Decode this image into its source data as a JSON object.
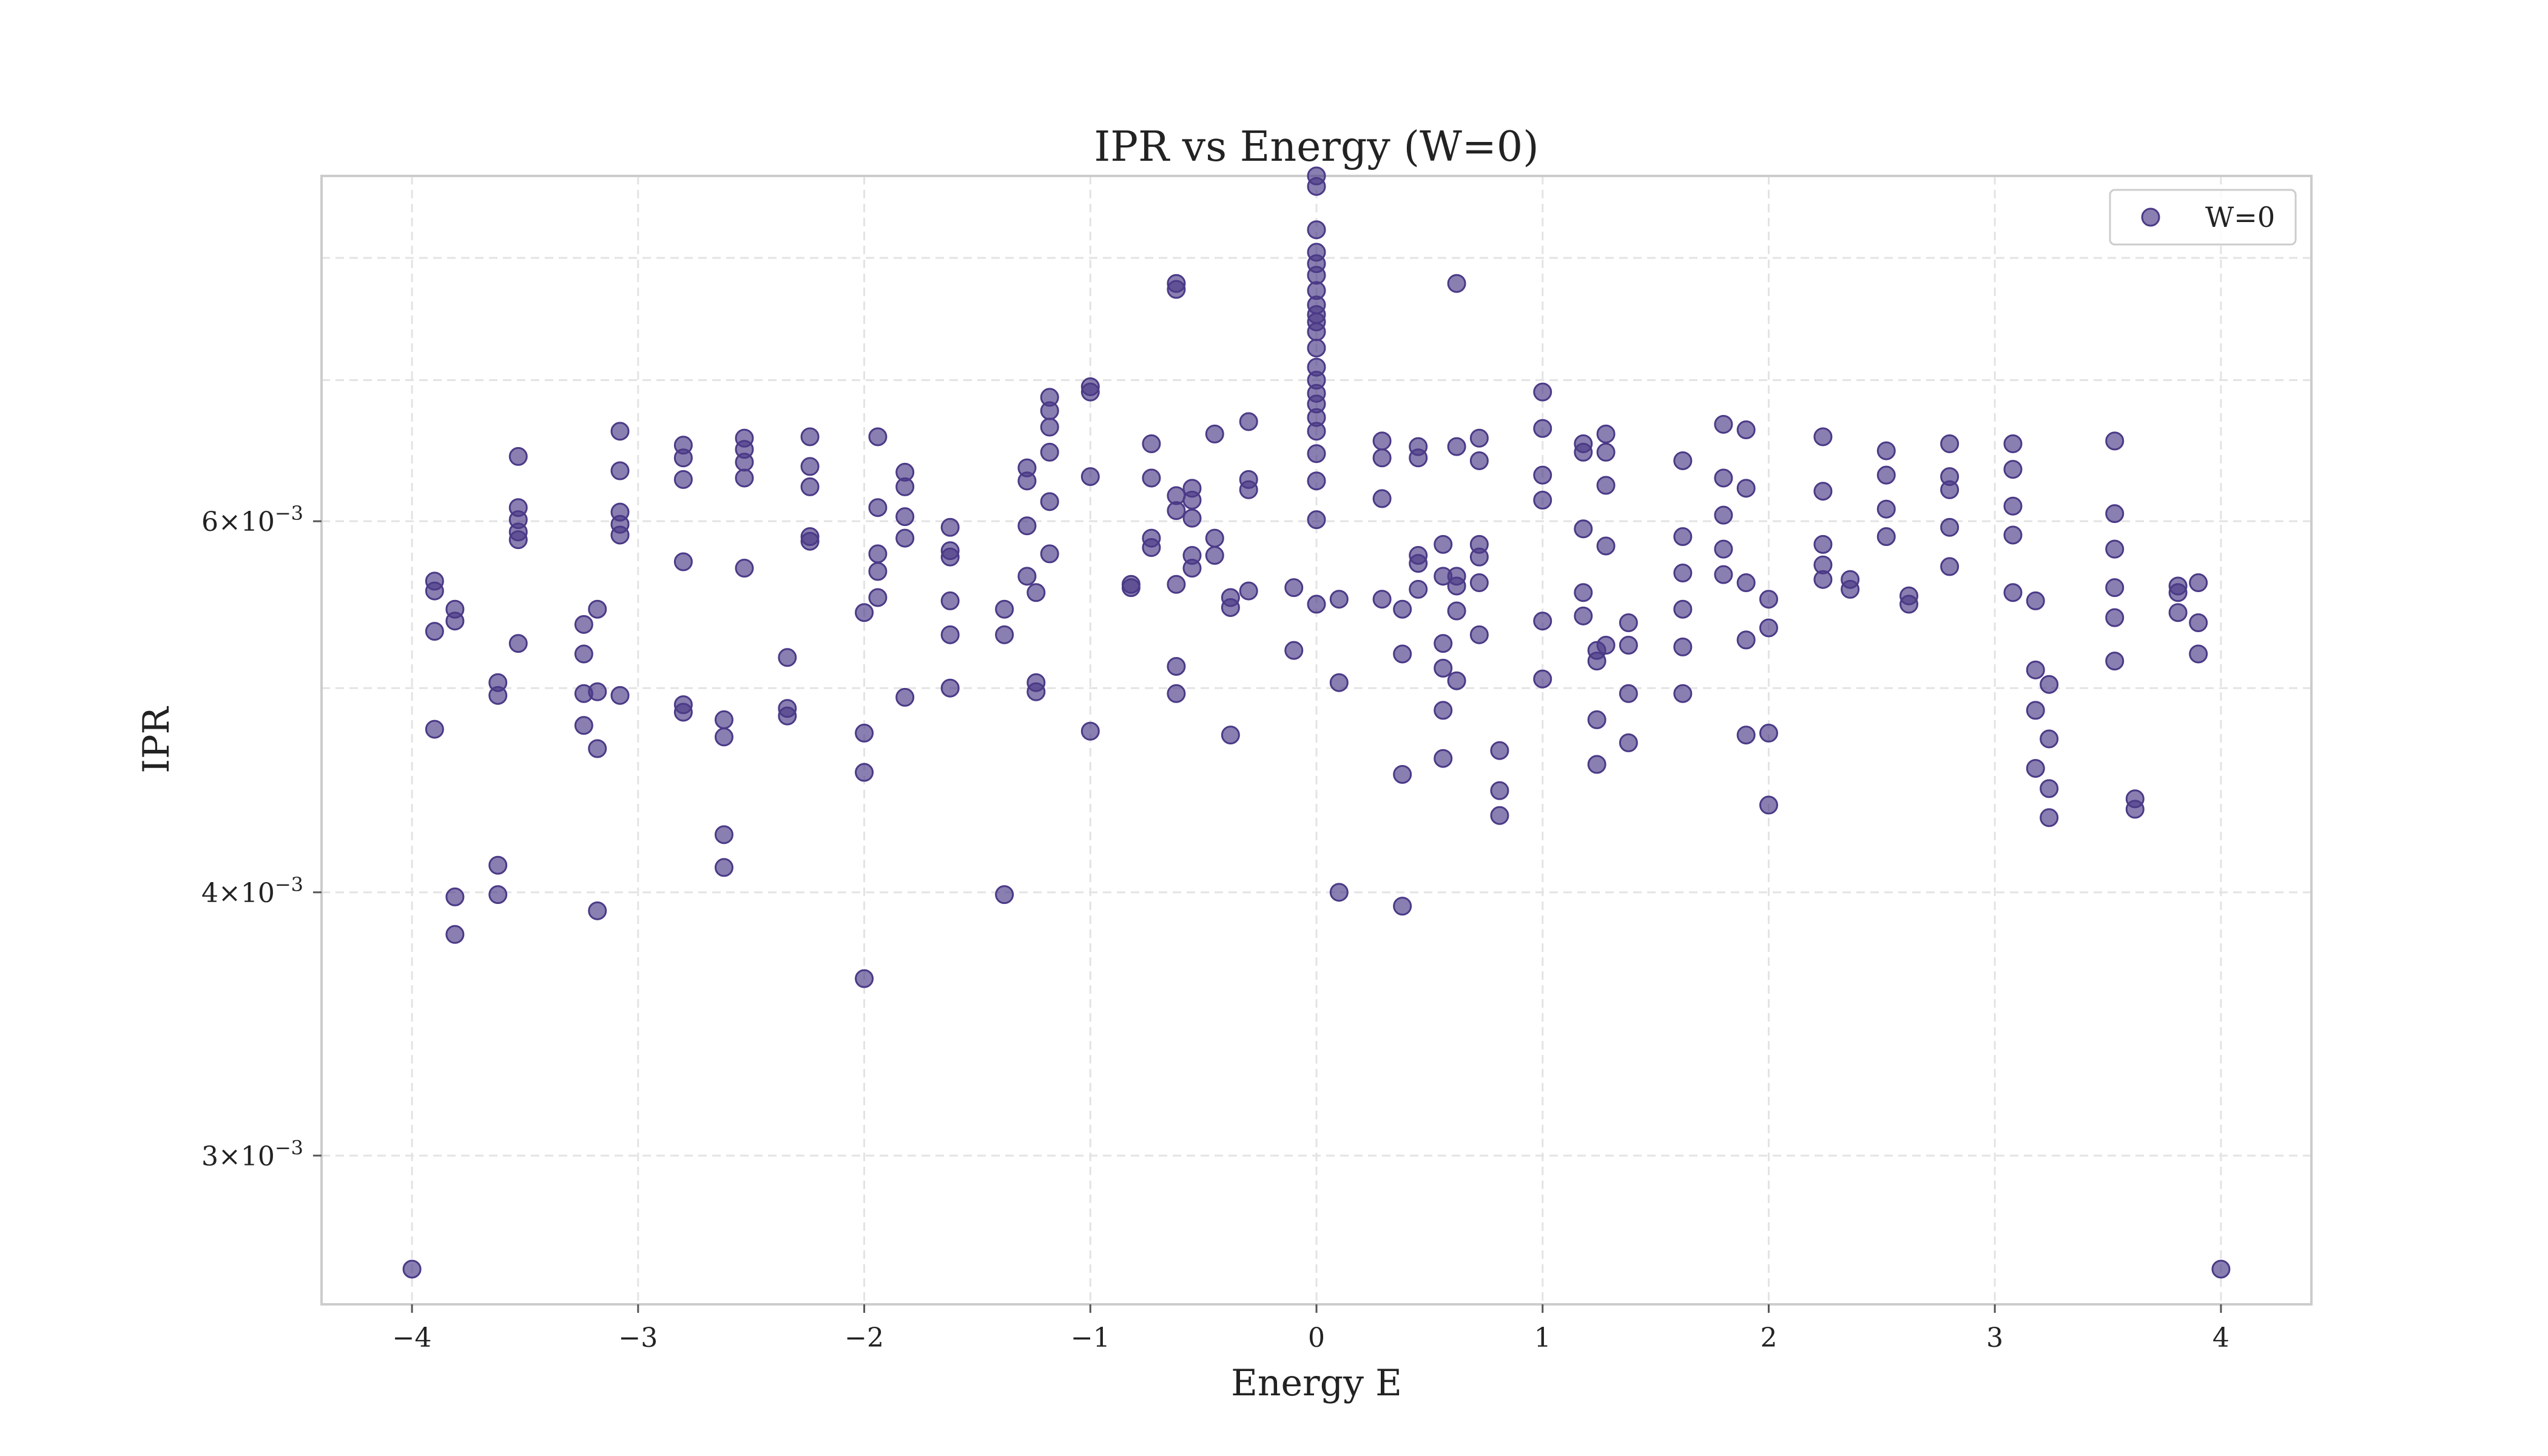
{
  "chart_data": {
    "type": "scatter",
    "title": "IPR vs Energy (W=0)",
    "xlabel": "Energy E",
    "ylabel": "IPR",
    "xlim": [
      -4.4,
      4.4
    ],
    "ylim": [
      0.00255,
      0.00875
    ],
    "y_scale": "log",
    "grid": true,
    "legend_position": "top-right",
    "x_ticks": [
      {
        "value": -4,
        "label": "−4"
      },
      {
        "value": -3,
        "label": "−3"
      },
      {
        "value": -2,
        "label": "−2"
      },
      {
        "value": -1,
        "label": "−1"
      },
      {
        "value": 0,
        "label": "0"
      },
      {
        "value": 1,
        "label": "1"
      },
      {
        "value": 2,
        "label": "2"
      },
      {
        "value": 3,
        "label": "3"
      },
      {
        "value": 4,
        "label": "4"
      }
    ],
    "y_ticks": [
      {
        "value": 0.003,
        "mantissa": "3",
        "base": "×10",
        "exp": "−3"
      },
      {
        "value": 0.004,
        "mantissa": "4",
        "base": "×10",
        "exp": "−3"
      },
      {
        "value": 0.006,
        "mantissa": "6",
        "base": "×10",
        "exp": "−3"
      }
    ],
    "y_minor_gridlines": [
      0.005,
      0.007,
      0.008
    ],
    "series": [
      {
        "name": "W=0",
        "color": "#4b3a87",
        "x": [
          -4.0,
          4.0,
          -3.9,
          -3.9,
          -3.9,
          -3.9,
          -3.81,
          -3.81,
          -3.81,
          -3.81,
          -3.62,
          -3.62,
          -3.62,
          -3.62,
          -3.53,
          -3.53,
          -3.53,
          -3.53,
          -3.53,
          -3.53,
          -3.24,
          -3.24,
          -3.24,
          -3.24,
          -3.18,
          -3.18,
          -3.18,
          -3.18,
          -3.08,
          -3.08,
          -3.08,
          -3.08,
          -3.08,
          -3.08,
          -2.8,
          -2.8,
          -2.8,
          -2.8,
          -2.8,
          -2.8,
          -2.62,
          -2.62,
          -2.62,
          -2.62,
          -2.53,
          -2.53,
          -2.53,
          -2.53,
          -2.53,
          -2.34,
          -2.34,
          -2.34,
          -2.24,
          -2.24,
          -2.24,
          -2.24,
          -2.24,
          -2.0,
          -2.0,
          -2.0,
          -2.0,
          -1.94,
          -1.94,
          -1.94,
          -1.94,
          -1.94,
          -1.82,
          -1.82,
          -1.82,
          -1.82,
          -1.82,
          -1.62,
          -1.62,
          -1.62,
          -1.62,
          -1.62,
          -1.62,
          -1.38,
          -1.38,
          -1.38,
          -1.28,
          -1.28,
          -1.28,
          -1.28,
          -1.24,
          -1.24,
          -1.24,
          -1.18,
          -1.18,
          -1.18,
          -1.18,
          -1.18,
          -1.18,
          -1.0,
          -1.0,
          -1.0,
          -1.0,
          -0.82,
          -0.82,
          -0.73,
          -0.73,
          -0.73,
          -0.73,
          -0.62,
          -0.62,
          -0.62,
          -0.62,
          -0.62,
          -0.62,
          -0.62,
          -0.55,
          -0.55,
          -0.55,
          -0.55,
          -0.55,
          -0.45,
          -0.45,
          -0.45,
          -0.38,
          -0.38,
          -0.38,
          -0.3,
          -0.3,
          -0.3,
          -0.3,
          -0.1,
          -0.1,
          0.0,
          0.0,
          0.0,
          0.0,
          0.0,
          0.0,
          0.0,
          0.0,
          0.0,
          0.0,
          0.0,
          0.0,
          0.0,
          0.0,
          0.0,
          0.0,
          0.0,
          0.0,
          0.0,
          0.0,
          0.0,
          0.0,
          0.1,
          0.1,
          0.1,
          0.29,
          0.29,
          0.29,
          0.29,
          0.38,
          0.38,
          0.38,
          0.38,
          0.45,
          0.45,
          0.45,
          0.45,
          0.45,
          0.56,
          0.56,
          0.56,
          0.56,
          0.56,
          0.56,
          0.62,
          0.62,
          0.62,
          0.62,
          0.62,
          0.62,
          0.72,
          0.72,
          0.72,
          0.72,
          0.72,
          0.72,
          0.81,
          0.81,
          0.81,
          1.0,
          1.0,
          1.0,
          1.0,
          1.0,
          1.0,
          1.18,
          1.18,
          1.18,
          1.18,
          1.18,
          1.24,
          1.24,
          1.24,
          1.24,
          1.28,
          1.28,
          1.28,
          1.28,
          1.28,
          1.38,
          1.38,
          1.38,
          1.38,
          1.62,
          1.62,
          1.62,
          1.62,
          1.62,
          1.62,
          1.8,
          1.8,
          1.8,
          1.8,
          1.8,
          1.9,
          1.9,
          1.9,
          1.9,
          1.9,
          2.0,
          2.0,
          2.0,
          2.0,
          2.24,
          2.24,
          2.24,
          2.24,
          2.24,
          2.36,
          2.36,
          2.52,
          2.52,
          2.52,
          2.52,
          2.62,
          2.62,
          2.8,
          2.8,
          2.8,
          2.8,
          2.8,
          3.08,
          3.08,
          3.08,
          3.08,
          3.08,
          3.18,
          3.18,
          3.18,
          3.18,
          3.24,
          3.24,
          3.24,
          3.24,
          3.53,
          3.53,
          3.53,
          3.53,
          3.53,
          3.53,
          3.62,
          3.62,
          3.81,
          3.81,
          3.81,
          3.9,
          3.9,
          3.9
        ],
        "y": [
          0.00265,
          0.00265,
          0.00562,
          0.00556,
          0.00532,
          0.00478,
          0.00545,
          0.00538,
          0.00398,
          0.00382,
          0.00503,
          0.00496,
          0.00412,
          0.00399,
          0.00644,
          0.00609,
          0.00601,
          0.00593,
          0.00588,
          0.00525,
          0.00536,
          0.00519,
          0.00497,
          0.0048,
          0.00545,
          0.00498,
          0.00468,
          0.00392,
          0.00662,
          0.00634,
          0.00606,
          0.00598,
          0.00591,
          0.00496,
          0.00652,
          0.00643,
          0.00628,
          0.00574,
          0.00491,
          0.00487,
          0.00483,
          0.00474,
          0.00426,
          0.00411,
          0.00657,
          0.00649,
          0.0064,
          0.00629,
          0.0057,
          0.00517,
          0.00489,
          0.00485,
          0.00658,
          0.00637,
          0.00623,
          0.0059,
          0.00587,
          0.00543,
          0.00476,
          0.00456,
          0.00364,
          0.00658,
          0.00609,
          0.00579,
          0.00568,
          0.00552,
          0.00633,
          0.00623,
          0.00603,
          0.00589,
          0.00495,
          0.00596,
          0.00581,
          0.00577,
          0.0055,
          0.0053,
          0.005,
          0.00399,
          0.00545,
          0.0053,
          0.00636,
          0.00627,
          0.00597,
          0.00565,
          0.00555,
          0.00503,
          0.00498,
          0.00687,
          0.00677,
          0.00665,
          0.00647,
          0.00613,
          0.00579,
          0.00695,
          0.00691,
          0.0063,
          0.00477,
          0.0056,
          0.00558,
          0.00653,
          0.00629,
          0.00589,
          0.00583,
          0.00778,
          0.00773,
          0.00617,
          0.00607,
          0.0056,
          0.00512,
          0.00497,
          0.00622,
          0.00614,
          0.00602,
          0.00578,
          0.0057,
          0.0066,
          0.00589,
          0.00578,
          0.00552,
          0.00546,
          0.00475,
          0.00669,
          0.00628,
          0.00621,
          0.00556,
          0.00558,
          0.00521,
          0.00875,
          0.00865,
          0.00825,
          0.00805,
          0.00795,
          0.00785,
          0.00772,
          0.0076,
          0.00752,
          0.00746,
          0.00738,
          0.00725,
          0.0071,
          0.007,
          0.0069,
          0.00682,
          0.00672,
          0.00662,
          0.00646,
          0.00627,
          0.00601,
          0.00548,
          0.00551,
          0.00503,
          0.004,
          0.00655,
          0.00643,
          0.00615,
          0.00551,
          0.00545,
          0.00519,
          0.00455,
          0.00394,
          0.00651,
          0.00643,
          0.00578,
          0.00573,
          0.00557,
          0.00585,
          0.00565,
          0.00525,
          0.00511,
          0.00488,
          0.00463,
          0.00778,
          0.00651,
          0.00565,
          0.00559,
          0.00544,
          0.00504,
          0.00657,
          0.00641,
          0.00585,
          0.00577,
          0.00561,
          0.0053,
          0.00467,
          0.00447,
          0.00435,
          0.00691,
          0.00664,
          0.00631,
          0.00614,
          0.00538,
          0.00505,
          0.00653,
          0.00647,
          0.00595,
          0.00555,
          0.00541,
          0.00483,
          0.0046,
          0.00521,
          0.00515,
          0.0066,
          0.00647,
          0.00624,
          0.00584,
          0.00524,
          0.00537,
          0.00524,
          0.00497,
          0.00471,
          0.00641,
          0.0059,
          0.00567,
          0.00545,
          0.00523,
          0.00497,
          0.00667,
          0.00629,
          0.00604,
          0.00582,
          0.00566,
          0.00663,
          0.00622,
          0.00561,
          0.00527,
          0.00475,
          0.00551,
          0.00534,
          0.00476,
          0.0044,
          0.00658,
          0.0062,
          0.00585,
          0.00572,
          0.00563,
          0.00563,
          0.00557,
          0.00648,
          0.00631,
          0.00608,
          0.0059,
          0.00553,
          0.00548,
          0.00653,
          0.0063,
          0.00621,
          0.00596,
          0.00571,
          0.00653,
          0.00635,
          0.0061,
          0.00591,
          0.00555,
          0.0055,
          0.0051,
          0.00488,
          0.00458,
          0.00502,
          0.00473,
          0.00448,
          0.00434,
          0.00655,
          0.00605,
          0.00582,
          0.00558,
          0.0054,
          0.00515,
          0.00443,
          0.00438,
          0.00559,
          0.00555,
          0.00543,
          0.00561,
          0.00537,
          0.00519
        ]
      }
    ]
  }
}
